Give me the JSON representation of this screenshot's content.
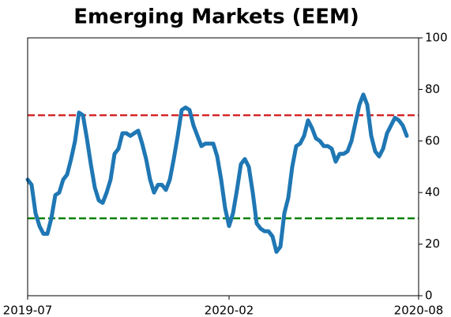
{
  "chart_data": {
    "type": "line",
    "title": "Emerging Markets (EEM)",
    "categories": [
      "2019-07",
      null,
      null,
      null,
      null,
      null,
      null,
      null,
      null,
      null,
      null,
      null,
      null,
      null,
      null,
      null,
      null,
      null,
      null,
      null,
      null,
      null,
      null,
      null,
      null,
      null,
      null,
      null,
      null,
      null,
      null,
      null,
      null,
      null,
      null,
      null,
      null,
      null,
      null,
      null,
      null,
      null,
      null,
      null,
      null,
      null,
      null,
      null,
      null,
      null,
      null,
      "2020-02",
      null,
      null,
      null,
      null,
      null,
      null,
      null,
      null,
      null,
      null,
      null,
      null,
      null,
      null,
      null,
      null,
      null,
      null,
      null,
      null,
      null,
      null,
      null,
      null,
      null,
      null,
      null,
      null,
      null,
      null,
      null,
      null,
      null,
      null,
      null,
      null,
      null,
      null,
      null,
      null,
      null,
      null,
      null,
      null,
      null,
      null,
      null,
      "2020-08"
    ],
    "series": [
      {
        "color": "#1f77b4",
        "values": [
          45,
          43,
          32,
          27,
          24,
          24,
          30,
          39,
          40,
          45,
          47,
          53,
          60,
          71,
          70,
          61,
          51,
          42,
          37,
          36,
          40,
          45,
          55,
          57,
          63,
          63,
          62,
          63,
          64,
          59,
          53,
          45,
          40,
          43,
          43,
          41,
          45,
          53,
          62,
          72,
          73,
          72,
          66,
          62,
          58,
          59,
          59,
          59,
          54,
          45,
          34,
          27,
          32,
          41,
          51,
          53,
          50,
          40,
          28,
          26,
          25,
          25,
          23,
          17,
          19,
          32,
          38,
          50,
          58,
          59,
          62,
          68,
          65,
          61,
          60,
          58,
          58,
          57,
          52,
          55,
          55,
          56,
          60,
          67,
          74,
          78,
          74,
          62,
          56,
          54,
          57,
          63,
          66,
          69,
          68,
          66,
          62,
          null,
          null,
          null
        ]
      }
    ],
    "reference_lines": [
      {
        "value": 70,
        "color": "#d62728"
      },
      {
        "value": 30,
        "color": "#008000"
      }
    ],
    "ylim": [
      0,
      100
    ],
    "yticks": [
      0,
      20,
      40,
      60,
      80,
      100
    ],
    "y_axis_side": "right"
  }
}
